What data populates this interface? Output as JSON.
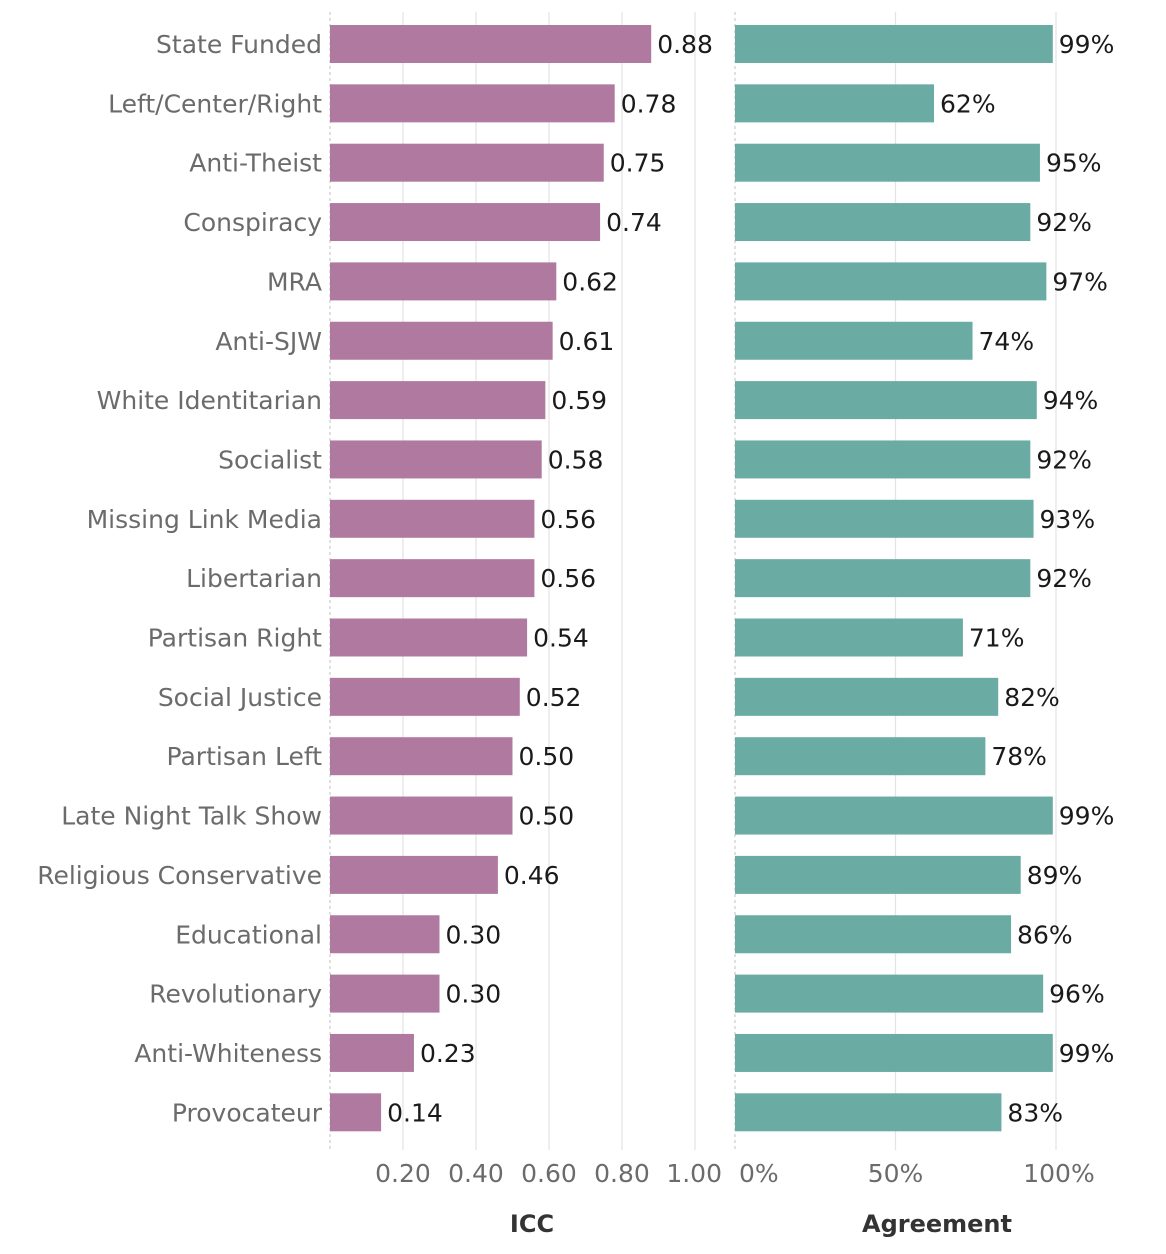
{
  "chart_data": {
    "type": "bar",
    "orientation": "horizontal",
    "categories": [
      "State Funded",
      "Left/Center/Right",
      "Anti-Theist",
      "Conspiracy",
      "MRA",
      "Anti-SJW",
      "White Identitarian",
      "Socialist",
      "Missing Link Media",
      "Libertarian",
      "Partisan Right",
      "Social Justice",
      "Partisan Left",
      "Late Night Talk Show",
      "Religious Conservative",
      "Educational",
      "Revolutionary",
      "Anti-Whiteness",
      "Provocateur"
    ],
    "panels": [
      {
        "name": "ICC",
        "xlabel": "ICC",
        "color": "#b0799f",
        "xlim": [
          0,
          1.0
        ],
        "ticks": [
          0.2,
          0.4,
          0.6,
          0.8,
          1.0
        ],
        "tick_labels": [
          "0.20",
          "0.40",
          "0.60",
          "0.80",
          "1.00"
        ],
        "values": [
          0.88,
          0.78,
          0.75,
          0.74,
          0.62,
          0.61,
          0.59,
          0.58,
          0.56,
          0.56,
          0.54,
          0.52,
          0.5,
          0.5,
          0.46,
          0.3,
          0.3,
          0.23,
          0.14
        ],
        "value_labels": [
          "0.88",
          "0.78",
          "0.75",
          "0.74",
          "0.62",
          "0.61",
          "0.59",
          "0.58",
          "0.56",
          "0.56",
          "0.54",
          "0.52",
          "0.50",
          "0.50",
          "0.46",
          "0.30",
          "0.30",
          "0.23",
          "0.14"
        ]
      },
      {
        "name": "Agreement",
        "xlabel": "Agreement",
        "color": "#6aaba4",
        "xlim": [
          0,
          100
        ],
        "ticks": [
          0,
          50,
          100
        ],
        "tick_labels": [
          "0%",
          "50%",
          "100%"
        ],
        "values": [
          99,
          62,
          95,
          92,
          97,
          74,
          94,
          92,
          93,
          92,
          71,
          82,
          78,
          99,
          89,
          86,
          96,
          99,
          83
        ],
        "value_labels": [
          "99%",
          "62%",
          "95%",
          "92%",
          "97%",
          "74%",
          "94%",
          "92%",
          "93%",
          "92%",
          "71%",
          "82%",
          "78%",
          "99%",
          "89%",
          "86%",
          "96%",
          "99%",
          "83%"
        ]
      }
    ],
    "grid": "vertical",
    "legend": "none"
  }
}
